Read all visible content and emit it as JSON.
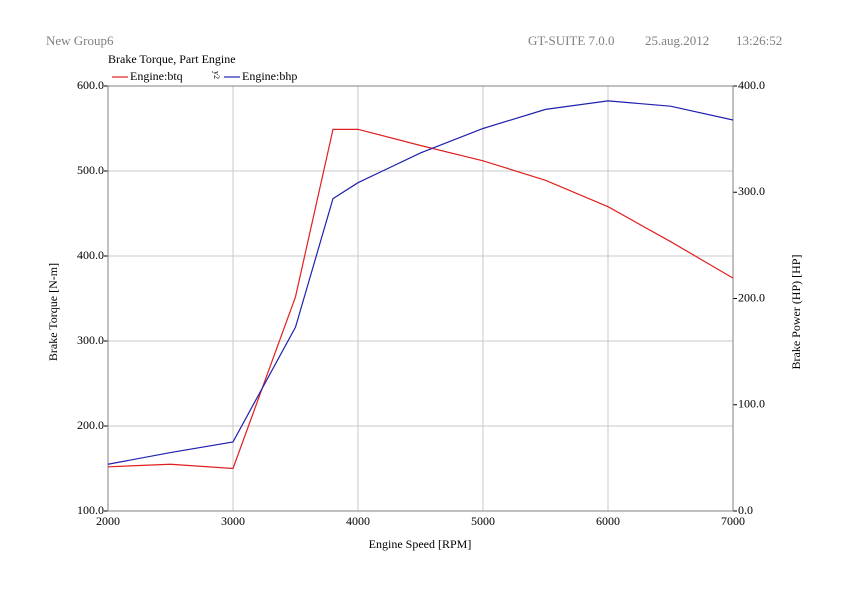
{
  "header": {
    "group": "New Group6",
    "software": "GT-SUITE 7.0.0",
    "date": "25.aug.2012",
    "time": "13:26:52"
  },
  "chart_data": {
    "type": "line",
    "title": "Brake Torque, Part Engine",
    "x_label": "Engine Speed [RPM]",
    "y_label": "Brake Torque [N-m]",
    "y2_label": "Brake Power (HP) [HP]",
    "x": [
      2000,
      2500,
      3000,
      3500,
      3800,
      4000,
      4500,
      5000,
      5500,
      6000,
      6500,
      7000
    ],
    "series": [
      {
        "name": "Engine:btq",
        "color": "#e02020",
        "values": [
          152,
          155,
          150,
          352,
          549,
          549,
          530,
          512,
          489,
          458,
          417,
          374
        ]
      },
      {
        "name": "Engine:bhp",
        "color": "#2020b0",
        "axis": "y2",
        "values": [
          44,
          55,
          65,
          173,
          294,
          309,
          337,
          360,
          378,
          386,
          381,
          368
        ]
      }
    ],
    "xlim": [
      2000,
      7000
    ],
    "xticks": [
      2000,
      3000,
      4000,
      5000,
      6000,
      7000
    ],
    "ylim": [
      100,
      600
    ],
    "yticks": [
      {
        "value": 100,
        "label": "100.0"
      },
      {
        "value": 200,
        "label": "200.0"
      },
      {
        "value": 300,
        "label": "300.0"
      },
      {
        "value": 400,
        "label": "400.0"
      },
      {
        "value": 500,
        "label": "500.0"
      },
      {
        "value": 600,
        "label": "600.0"
      }
    ],
    "y2lim": [
      0,
      400
    ],
    "y2ticks": [
      {
        "value": 0,
        "label": "0.0"
      },
      {
        "value": 100,
        "label": "100.0"
      },
      {
        "value": 200,
        "label": "200.0"
      },
      {
        "value": 300,
        "label": "300.0"
      },
      {
        "value": 400,
        "label": "400.0"
      }
    ],
    "grid": true
  }
}
